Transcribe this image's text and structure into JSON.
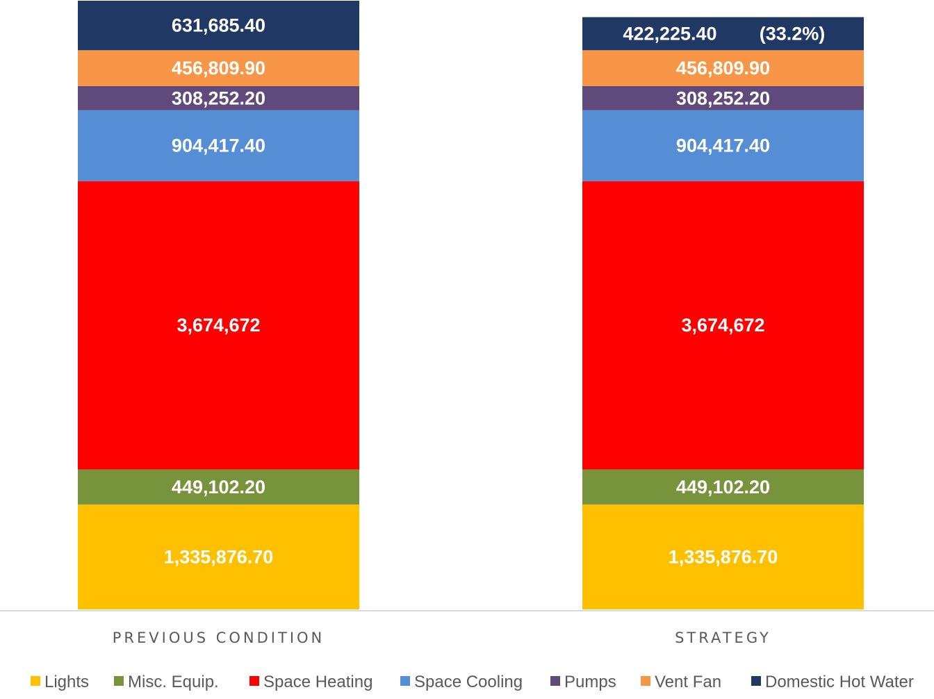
{
  "chart_data": {
    "type": "bar",
    "stacked": true,
    "categories": [
      "PREVIOUS CONDITION",
      "STRATEGY"
    ],
    "series": [
      {
        "name": "Lights",
        "color": "#FFC000",
        "values": [
          1335876.7,
          1335876.7
        ],
        "labels": [
          "1,335,876.70",
          "1,335,876.70"
        ]
      },
      {
        "name": "Misc. Equip.",
        "color": "#77933C",
        "values": [
          449102.2,
          449102.2
        ],
        "labels": [
          "449,102.20",
          "449,102.20"
        ]
      },
      {
        "name": "Space Heating",
        "color": "#FF0000",
        "values": [
          3674672,
          3674672
        ],
        "labels": [
          "3,674,672",
          "3,674,672"
        ]
      },
      {
        "name": "Space Cooling",
        "color": "#558ED5",
        "values": [
          904417.4,
          904417.4
        ],
        "labels": [
          "904,417.40",
          "904,417.40"
        ]
      },
      {
        "name": "Pumps",
        "color": "#604A7B",
        "values": [
          308252.2,
          308252.2
        ],
        "labels": [
          "308,252.20",
          "308,252.20"
        ]
      },
      {
        "name": "Vent Fan",
        "color": "#F79646",
        "values": [
          456809.9,
          456809.9
        ],
        "labels": [
          "456,809.90",
          "456,809.90"
        ]
      },
      {
        "name": "Domestic Hot Water",
        "color": "#1F3864",
        "values": [
          631685.4,
          422225.4
        ],
        "labels": [
          "631,685.40",
          "422,225.40"
        ]
      }
    ],
    "annotations": [
      {
        "category": "STRATEGY",
        "series": "Domestic Hot Water",
        "text": "(33.2%)"
      }
    ],
    "legend_position": "bottom",
    "grid": false,
    "ylim": [
      0,
      7760816
    ]
  }
}
